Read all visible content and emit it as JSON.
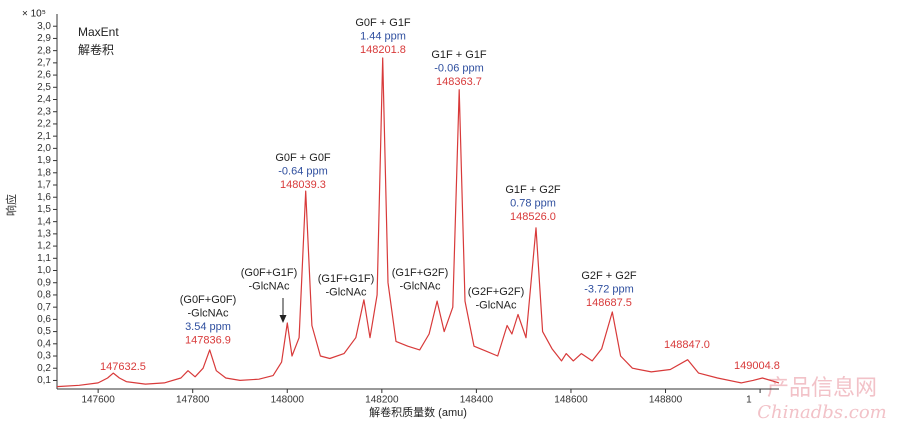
{
  "y_unit": "× 10⁵",
  "method": "MaxEnt",
  "method_cn": "解卷积",
  "watermark": [
    "产品信息网",
    "Chinadbs.com"
  ],
  "chart_data": {
    "type": "line",
    "xlabel": "解卷积质量数 (amu)",
    "ylabel": "响应",
    "xlim": [
      147513,
      149040
    ],
    "ylim": [
      0.03,
      3.1
    ],
    "xticks": [
      147600,
      147800,
      148000,
      148200,
      148400,
      148600,
      148800,
      {
        "value": 149000,
        "label": "1"
      }
    ],
    "yticks": [
      {
        "value": 0.1,
        "label": "0,1"
      },
      {
        "value": 0.2,
        "label": "0,2"
      },
      {
        "value": 0.3,
        "label": "0,3"
      },
      {
        "value": 0.4,
        "label": "0,4"
      },
      {
        "value": 0.5,
        "label": "0,5"
      },
      {
        "value": 0.6,
        "label": "0,6"
      },
      {
        "value": 0.7,
        "label": "0,7"
      },
      {
        "value": 0.8,
        "label": "0,8"
      },
      {
        "value": 0.9,
        "label": "0,9"
      },
      {
        "value": 1.0,
        "label": "1,0"
      },
      {
        "value": 1.1,
        "label": "1,1"
      },
      {
        "value": 1.2,
        "label": "1,2"
      },
      {
        "value": 1.3,
        "label": "1,3"
      },
      {
        "value": 1.4,
        "label": "1,4"
      },
      {
        "value": 1.5,
        "label": "1,5"
      },
      {
        "value": 1.6,
        "label": "1,6"
      },
      {
        "value": 1.7,
        "label": "1,7"
      },
      {
        "value": 1.8,
        "label": "1,8"
      },
      {
        "value": 1.9,
        "label": "1,9"
      },
      {
        "value": 2.0,
        "label": "2,0"
      },
      {
        "value": 2.1,
        "label": "2,1"
      },
      {
        "value": 2.2,
        "label": "2,2"
      },
      {
        "value": 2.3,
        "label": "2,3"
      },
      {
        "value": 2.4,
        "label": "2,4"
      },
      {
        "value": 2.5,
        "label": "2,5"
      },
      {
        "value": 2.6,
        "label": "2,6"
      },
      {
        "value": 2.7,
        "label": "2,7"
      },
      {
        "value": 2.8,
        "label": "2,8"
      },
      {
        "value": 2.9,
        "label": "2,9"
      },
      {
        "value": 3.0,
        "label": "3,0"
      }
    ],
    "x": [
      147513,
      147560,
      147600,
      147620,
      147632,
      147645,
      147660,
      147700,
      147740,
      147775,
      147790,
      147805,
      147822,
      147836,
      147850,
      147870,
      147900,
      147940,
      147970,
      147988,
      148000,
      148010,
      148025,
      148039,
      148052,
      148070,
      148090,
      148120,
      148145,
      148162,
      148175,
      148190,
      148201.8,
      148213,
      148230,
      148255,
      148280,
      148300,
      148317,
      148332,
      148350,
      148363.7,
      148376,
      148395,
      148420,
      148445,
      148465,
      148475,
      148488,
      148505,
      148526,
      148540,
      148560,
      148580,
      148590,
      148605,
      148622,
      148645,
      148665,
      148687.5,
      148705,
      148730,
      148770,
      148810,
      148847,
      148870,
      148910,
      148960,
      148985,
      149004.8,
      149040
    ],
    "series": [
      {
        "color": "#d83a3a",
        "values": [
          0.05,
          0.06,
          0.08,
          0.12,
          0.16,
          0.12,
          0.09,
          0.07,
          0.08,
          0.12,
          0.18,
          0.13,
          0.2,
          0.35,
          0.18,
          0.12,
          0.1,
          0.11,
          0.14,
          0.25,
          0.57,
          0.3,
          0.45,
          1.65,
          0.55,
          0.3,
          0.28,
          0.32,
          0.45,
          0.76,
          0.45,
          0.8,
          2.74,
          0.9,
          0.42,
          0.38,
          0.35,
          0.48,
          0.75,
          0.5,
          0.7,
          2.48,
          0.75,
          0.38,
          0.34,
          0.3,
          0.55,
          0.48,
          0.64,
          0.45,
          1.35,
          0.5,
          0.36,
          0.26,
          0.32,
          0.26,
          0.32,
          0.26,
          0.36,
          0.66,
          0.3,
          0.2,
          0.17,
          0.19,
          0.27,
          0.16,
          0.12,
          0.08,
          0.1,
          0.12,
          0.08
        ]
      }
    ],
    "annotations": [
      {
        "lines": [],
        "mass": "147632.5"
      },
      {
        "lines": [
          "(G0F+G0F)",
          "-GlcNAc"
        ],
        "ppm": "3.54 ppm",
        "mass": "147836.9"
      },
      {
        "lines": [
          "(G0F+G1F)",
          "-GlcNAc"
        ]
      },
      {
        "lines": [
          "G0F + G0F"
        ],
        "ppm": "-0.64 ppm",
        "mass": "148039.3"
      },
      {
        "lines": [
          "(G1F+G1F)",
          "-GlcNAc"
        ]
      },
      {
        "lines": [
          "G0F + G1F"
        ],
        "ppm": "1.44 ppm",
        "mass": "148201.8"
      },
      {
        "lines": [
          "(G1F+G2F)",
          "-GlcNAc"
        ]
      },
      {
        "lines": [
          "G1F + G1F"
        ],
        "ppm": "-0.06 ppm",
        "mass": "148363.7"
      },
      {
        "lines": [
          "(G2F+G2F)",
          "-GlcNAc"
        ]
      },
      {
        "lines": [
          "G1F + G2F"
        ],
        "ppm": "0.78 ppm",
        "mass": "148526.0"
      },
      {
        "lines": [
          "G2F + G2F"
        ],
        "ppm": "-3.72 ppm",
        "mass": "148687.5"
      },
      {
        "lines": [],
        "mass": "148847.0"
      },
      {
        "lines": [],
        "mass": "149004.8"
      }
    ]
  }
}
